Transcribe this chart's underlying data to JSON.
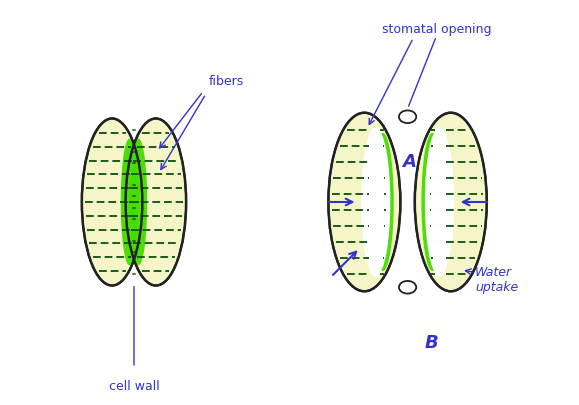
{
  "bg_color": "#ffffff",
  "label_color": "#3333cc",
  "cell_fill": "#f5f5c8",
  "cell_edge": "#222222",
  "green_fill": "#44dd00",
  "fiber_color": "#1a5c1a",
  "label_A": "A",
  "label_B": "B",
  "label_fibers": "fibers",
  "label_cell_wall": "cell wall",
  "label_stomatal": "stomatal opening",
  "label_water": "Water\nuptake",
  "figsize": [
    5.79,
    4.06
  ],
  "dpi": 100
}
